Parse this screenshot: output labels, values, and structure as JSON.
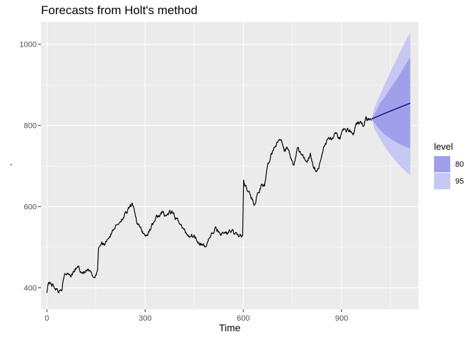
{
  "chart_data": {
    "type": "line",
    "title": "Forecasts from Holt's method",
    "xlabel": "Time",
    "ylabel": ".",
    "xlim": [
      -18,
      1135
    ],
    "ylim": [
      347,
      1055
    ],
    "x_ticks": [
      0,
      300,
      600,
      900
    ],
    "y_ticks": [
      400,
      600,
      800,
      1000
    ],
    "x_tick_labels": [
      "0",
      "300",
      "600",
      "900"
    ],
    "y_tick_labels": [
      "400",
      "600",
      "800",
      "1000"
    ],
    "grid": true,
    "legend": {
      "title": "level",
      "position": "right",
      "entries": [
        {
          "label": "80",
          "color": "#a0a0ea"
        },
        {
          "label": "95",
          "color": "#c7c7f4"
        }
      ]
    },
    "colors": {
      "panel": "#ebebeb",
      "grid_major": "#ffffff",
      "series": "#000000",
      "forecast": "#00008b",
      "band80": "#a0a0ea",
      "band95": "#c7c7f4"
    },
    "series": [
      {
        "kind": "observed",
        "anchors": [
          [
            0,
            392
          ],
          [
            5,
            415
          ],
          [
            15,
            408
          ],
          [
            25,
            402
          ],
          [
            35,
            390
          ],
          [
            45,
            398
          ],
          [
            55,
            432
          ],
          [
            65,
            438
          ],
          [
            75,
            432
          ],
          [
            85,
            442
          ],
          [
            95,
            453
          ],
          [
            105,
            440
          ],
          [
            115,
            437
          ],
          [
            125,
            442
          ],
          [
            135,
            435
          ],
          [
            145,
            425
          ],
          [
            155,
            445
          ],
          [
            158,
            500
          ],
          [
            165,
            510
          ],
          [
            175,
            507
          ],
          [
            185,
            522
          ],
          [
            195,
            530
          ],
          [
            205,
            548
          ],
          [
            215,
            555
          ],
          [
            225,
            566
          ],
          [
            235,
            576
          ],
          [
            245,
            586
          ],
          [
            255,
            600
          ],
          [
            265,
            603
          ],
          [
            275,
            562
          ],
          [
            285,
            547
          ],
          [
            295,
            535
          ],
          [
            305,
            527
          ],
          [
            315,
            545
          ],
          [
            325,
            560
          ],
          [
            335,
            573
          ],
          [
            345,
            580
          ],
          [
            355,
            584
          ],
          [
            365,
            578
          ],
          [
            375,
            585
          ],
          [
            385,
            583
          ],
          [
            395,
            568
          ],
          [
            405,
            563
          ],
          [
            415,
            546
          ],
          [
            425,
            536
          ],
          [
            435,
            528
          ],
          [
            445,
            530
          ],
          [
            455,
            524
          ],
          [
            465,
            512
          ],
          [
            475,
            504
          ],
          [
            485,
            500
          ],
          [
            495,
            522
          ],
          [
            505,
            532
          ],
          [
            515,
            545
          ],
          [
            525,
            538
          ],
          [
            535,
            532
          ],
          [
            545,
            536
          ],
          [
            555,
            535
          ],
          [
            565,
            540
          ],
          [
            575,
            535
          ],
          [
            585,
            528
          ],
          [
            590,
            530
          ],
          [
            598,
            525
          ],
          [
            601,
            665
          ],
          [
            608,
            650
          ],
          [
            615,
            642
          ],
          [
            625,
            620
          ],
          [
            635,
            605
          ],
          [
            645,
            632
          ],
          [
            655,
            650
          ],
          [
            665,
            652
          ],
          [
            675,
            700
          ],
          [
            685,
            728
          ],
          [
            695,
            747
          ],
          [
            705,
            760
          ],
          [
            715,
            765
          ],
          [
            725,
            736
          ],
          [
            735,
            748
          ],
          [
            745,
            718
          ],
          [
            755,
            700
          ],
          [
            765,
            745
          ],
          [
            775,
            732
          ],
          [
            785,
            718
          ],
          [
            795,
            713
          ],
          [
            805,
            728
          ],
          [
            815,
            700
          ],
          [
            825,
            688
          ],
          [
            835,
            706
          ],
          [
            845,
            745
          ],
          [
            855,
            762
          ],
          [
            865,
            768
          ],
          [
            875,
            768
          ],
          [
            885,
            780
          ],
          [
            895,
            765
          ],
          [
            905,
            790
          ],
          [
            915,
            788
          ],
          [
            925,
            790
          ],
          [
            935,
            776
          ],
          [
            945,
            800
          ],
          [
            955,
            808
          ],
          [
            965,
            800
          ],
          [
            975,
            818
          ],
          [
            985,
            815
          ],
          [
            991,
            812
          ]
        ]
      },
      {
        "kind": "forecast",
        "x": [
          992,
          1030,
          1070,
          1110
        ],
        "mean": [
          816,
          829,
          842,
          855
        ]
      }
    ],
    "bands": [
      {
        "level": "95",
        "x": [
          992,
          1000,
          1010,
          1020,
          1030,
          1040,
          1050,
          1060,
          1070,
          1080,
          1090,
          1100,
          1110
        ],
        "lo": [
          816,
          792,
          777,
          764,
          750,
          739,
          728,
          718,
          708,
          699,
          691,
          684,
          678
        ],
        "hi": [
          816,
          843,
          861,
          879,
          898,
          915,
          932,
          950,
          966,
          983,
          999,
          1015,
          1028
        ]
      },
      {
        "level": "80",
        "x": [
          992,
          1000,
          1010,
          1020,
          1030,
          1040,
          1050,
          1060,
          1070,
          1080,
          1090,
          1100,
          1110
        ],
        "lo": [
          816,
          808,
          796,
          787,
          779,
          773,
          767,
          762,
          757,
          753,
          749,
          746,
          743
        ],
        "hi": [
          816,
          827,
          842,
          857,
          868,
          880,
          892,
          904,
          915,
          929,
          942,
          955,
          968
        ]
      }
    ]
  }
}
